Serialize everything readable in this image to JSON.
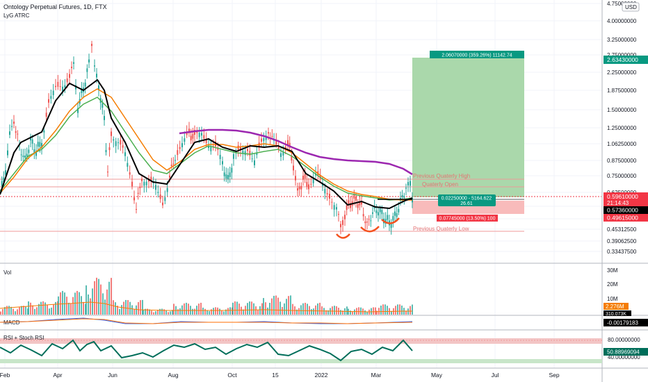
{
  "header": {
    "title": "Ontology Perpetual Futures, 1D, FTX",
    "indicator": "LyG ATRC",
    "currency_badge": "USD"
  },
  "price_axis": {
    "ticks": [
      "4.75000000",
      "4.00000000",
      "3.25000000",
      "2.75000000",
      "2.25000000",
      "1.87500000",
      "1.50000000",
      "1.25000000",
      "1.06250000",
      "0.87500000",
      "0.75000000",
      "0.62500000",
      "0.56250000",
      "0.49375000",
      "0.45312500",
      "0.39062500",
      "0.33437500"
    ],
    "tick_values": [
      4.75,
      4.0,
      3.25,
      2.75,
      2.25,
      1.875,
      1.5,
      1.25,
      1.0625,
      0.875,
      0.75,
      0.625,
      0.5625,
      0.49375,
      0.453125,
      0.390625,
      0.334375
    ],
    "scale": "log"
  },
  "time_axis": {
    "labels": [
      "Feb",
      "Apr",
      "Jun",
      "Aug",
      "Oct",
      "15",
      "2022",
      "Mar",
      "May",
      "Jul",
      "Sep"
    ]
  },
  "price_badges": {
    "target": {
      "text": "2.63430000",
      "color": "#089981"
    },
    "current": {
      "text": "0.59610000",
      "color": "#f23645"
    },
    "timer": "21:14:43",
    "entry": {
      "text": "0.57360000",
      "color": "#000000"
    },
    "stop": {
      "text": "0.49615000",
      "color": "#f23645"
    }
  },
  "position_tool": {
    "target_label": "2.06070000 (359.26%) 11142.74",
    "entry_label_line1": "0.02250000 - 5164.622",
    "entry_label_line2": "26.61",
    "stop_label": "0.07745000 (13.50%) 100"
  },
  "annotations": {
    "prev_q_high": "Previous Quaterly High",
    "q_open": "Quaterly Open",
    "prev_q_low": "Previous Quaterly Low"
  },
  "volume_panel": {
    "label": "Vol",
    "ticks": [
      "30M",
      "20M",
      "10M"
    ],
    "badge_ma": "2.276M",
    "badge_vol": "310.073K"
  },
  "macd_panel": {
    "label": "MACD",
    "badge": "-0.00179183"
  },
  "rsi_panel": {
    "label": "RSI + Stoch RSI",
    "ticks": [
      "80.00000000",
      "40.00000000"
    ],
    "badge": "50.88969094"
  },
  "colors": {
    "ma_black": "#000000",
    "ma_orange": "#f57c00",
    "ma_green": "#4caf50",
    "ma_purple": "#9c27b0",
    "rsi_line": "#006e5a",
    "profit_zone": "#a5d6a7",
    "loss_zone": "#f8bbbb"
  },
  "chart_data": [
    {
      "type": "line",
      "title": "Ontology Perpetual Futures, 1D, FTX",
      "xlabel": "",
      "ylabel": "",
      "x": [
        "2021-02-01",
        "2021-03-01",
        "2021-04-01",
        "2021-05-01",
        "2021-05-15",
        "2021-06-01",
        "2021-07-01",
        "2021-08-01",
        "2021-09-01",
        "2021-10-01",
        "2021-11-01",
        "2021-12-01",
        "2022-01-01",
        "2022-01-25",
        "2022-02-15",
        "2022-03-01",
        "2022-03-20",
        "2022-03-28"
      ],
      "series": [
        {
          "name": "",
          "values": [
            0.58,
            1.2,
            2.3,
            3.0,
            2.1,
            0.62,
            0.55,
            1.15,
            0.95,
            1.05,
            1.1,
            0.72,
            0.6,
            0.43,
            0.52,
            0.47,
            0.64,
            0.596
          ]
        }
      ],
      "ylim": [
        0.3,
        4.75
      ],
      "scale": "log"
    },
    {
      "type": "bar",
      "title": "Vol",
      "xlabel": "",
      "ylabel": "",
      "categories": [
        "2021-02",
        "2021-03",
        "2021-04",
        "2021-05",
        "2021-06",
        "2021-07",
        "2021-08",
        "2021-09",
        "2021-10",
        "2021-11",
        "2021-12",
        "2022-01",
        "2022-02",
        "2022-03"
      ],
      "values": [
        6,
        9,
        16,
        25,
        10,
        4,
        8,
        5,
        9,
        13,
        8,
        6,
        5,
        7
      ],
      "ylim": [
        0,
        30
      ]
    }
  ]
}
